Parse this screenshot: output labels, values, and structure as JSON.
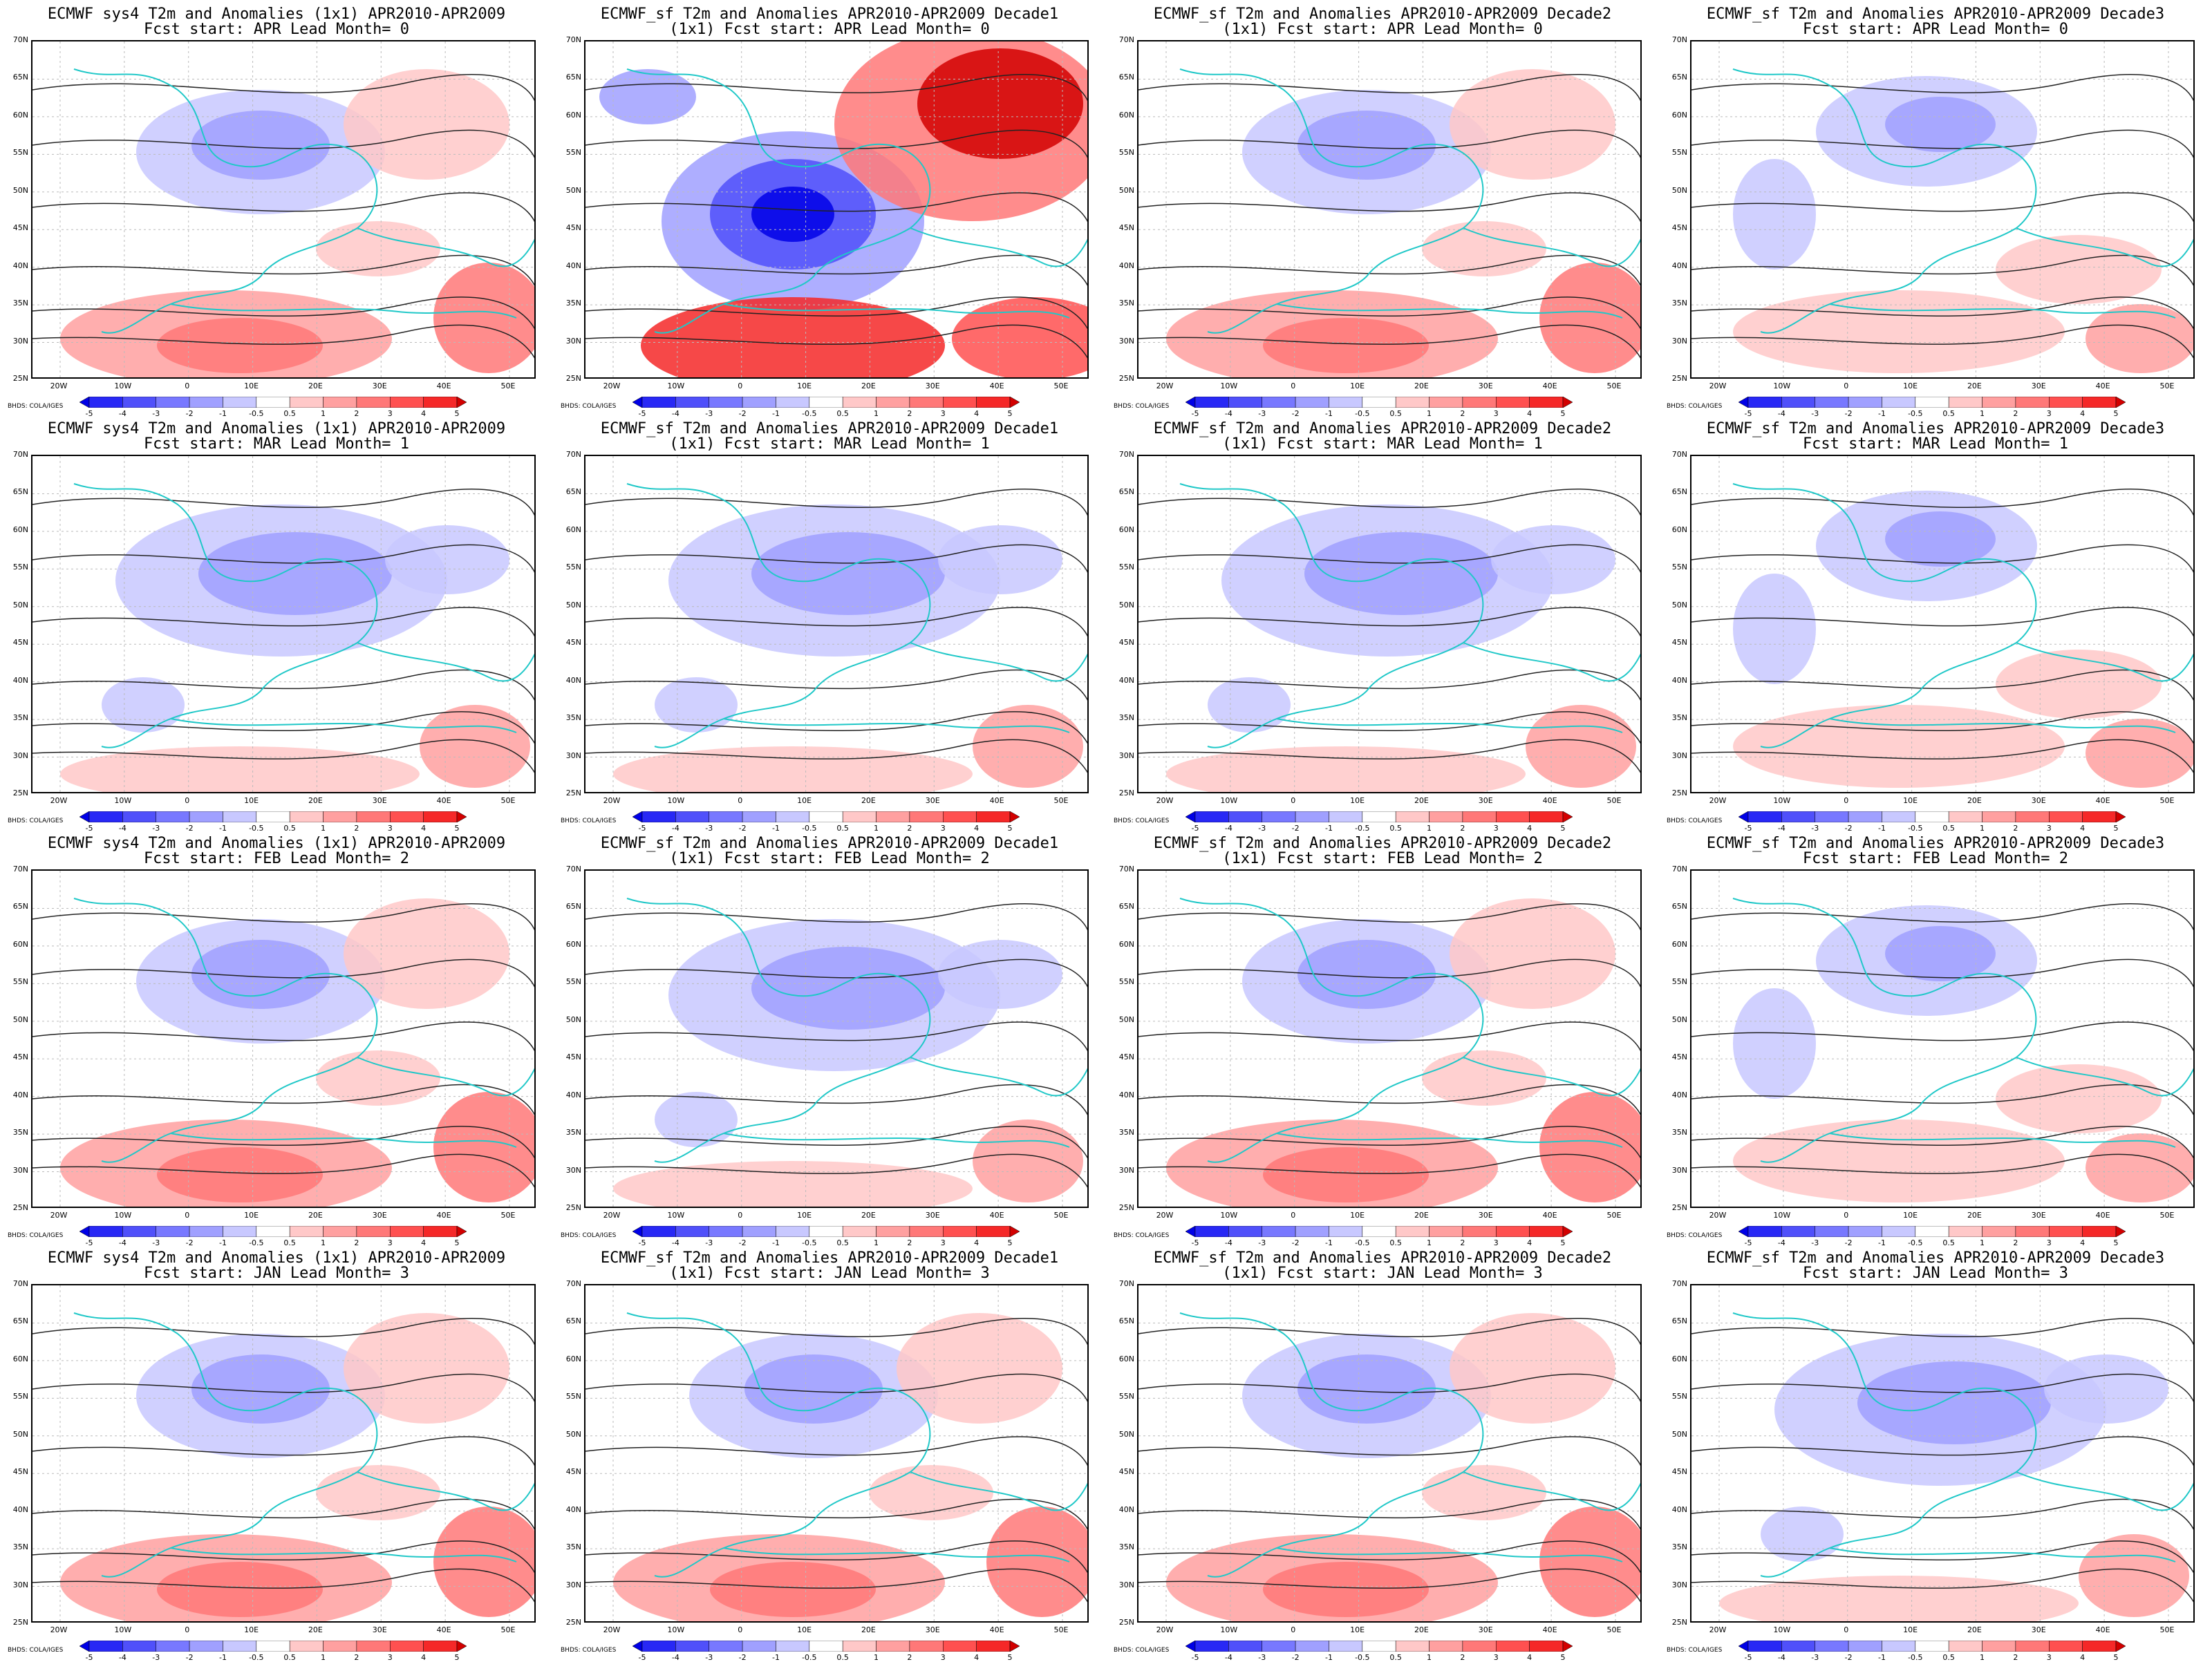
{
  "credit": "BHDS: COLA/IGES",
  "lat_labels": [
    "70N",
    "65N",
    "60N",
    "55N",
    "50N",
    "45N",
    "40N",
    "35N",
    "30N",
    "25N"
  ],
  "lon_labels": [
    "20W",
    "10W",
    "0",
    "10E",
    "20E",
    "30E",
    "40E",
    "50E"
  ],
  "colorbar": {
    "labels": [
      "-5",
      "-4",
      "-3",
      "-2",
      "-1",
      "-0.5",
      "0.5",
      "1",
      "2",
      "3",
      "4",
      "5"
    ],
    "colors": [
      "#0000e6",
      "#2828f5",
      "#5050fa",
      "#7878ff",
      "#a0a0ff",
      "#c8c8ff",
      "#ffffff",
      "#ffc8c8",
      "#ffa0a0",
      "#ff7878",
      "#ff5050",
      "#f52828",
      "#d20000"
    ]
  },
  "panels": [
    {
      "title1": "ECMWF sys4 T2m and Anomalies (1x1) APR2010-APR2009",
      "title2": "Fcst start: APR  Lead Month= 0",
      "tone": "mixed"
    },
    {
      "title1": "ECMWF_sf T2m and Anomalies APR2010-APR2009 Decade1",
      "title2": "(1x1) Fcst start: APR  Lead Month= 0",
      "tone": "strong"
    },
    {
      "title1": "ECMWF_sf T2m and Anomalies APR2010-APR2009 Decade2",
      "title2": "(1x1) Fcst start: APR  Lead Month= 0",
      "tone": "mixed"
    },
    {
      "title1": "ECMWF_sf T2m and Anomalies APR2010-APR2009 Decade3",
      "title2": "Fcst start: APR  Lead Month= 0",
      "tone": "weak"
    },
    {
      "title1": "ECMWF sys4 T2m and Anomalies (1x1) APR2010-APR2009",
      "title2": "Fcst start: MAR  Lead Month= 1",
      "tone": "cool"
    },
    {
      "title1": "ECMWF_sf T2m and Anomalies APR2010-APR2009 Decade1",
      "title2": "(1x1) Fcst start: MAR  Lead Month= 1",
      "tone": "cool"
    },
    {
      "title1": "ECMWF_sf T2m and Anomalies APR2010-APR2009 Decade2",
      "title2": "(1x1) Fcst start: MAR  Lead Month= 1",
      "tone": "cool"
    },
    {
      "title1": "ECMWF_sf T2m and Anomalies APR2010-APR2009 Decade3",
      "title2": "Fcst start: MAR  Lead Month= 1",
      "tone": "weak"
    },
    {
      "title1": "ECMWF sys4 T2m and Anomalies (1x1) APR2010-APR2009",
      "title2": "Fcst start: FEB  Lead Month= 2",
      "tone": "mixed"
    },
    {
      "title1": "ECMWF_sf T2m and Anomalies APR2010-APR2009 Decade1",
      "title2": "(1x1) Fcst start: FEB  Lead Month= 2",
      "tone": "cool"
    },
    {
      "title1": "ECMWF_sf T2m and Anomalies APR2010-APR2009 Decade2",
      "title2": "(1x1) Fcst start: FEB  Lead Month= 2",
      "tone": "mixed"
    },
    {
      "title1": "ECMWF_sf T2m and Anomalies APR2010-APR2009 Decade3",
      "title2": "Fcst start: FEB  Lead Month= 2",
      "tone": "weak"
    },
    {
      "title1": "ECMWF sys4 T2m and Anomalies (1x1) APR2010-APR2009",
      "title2": "Fcst start: JAN  Lead Month= 3",
      "tone": "mixed"
    },
    {
      "title1": "ECMWF_sf T2m and Anomalies APR2010-APR2009 Decade1",
      "title2": "(1x1) Fcst start: JAN  Lead Month= 3",
      "tone": "mixed"
    },
    {
      "title1": "ECMWF_sf T2m and Anomalies APR2010-APR2009 Decade2",
      "title2": "(1x1) Fcst start: JAN  Lead Month= 3",
      "tone": "mixed"
    },
    {
      "title1": "ECMWF_sf T2m and Anomalies APR2010-APR2009 Decade3",
      "title2": "Fcst start: JAN  Lead Month= 3",
      "tone": "cool"
    }
  ]
}
